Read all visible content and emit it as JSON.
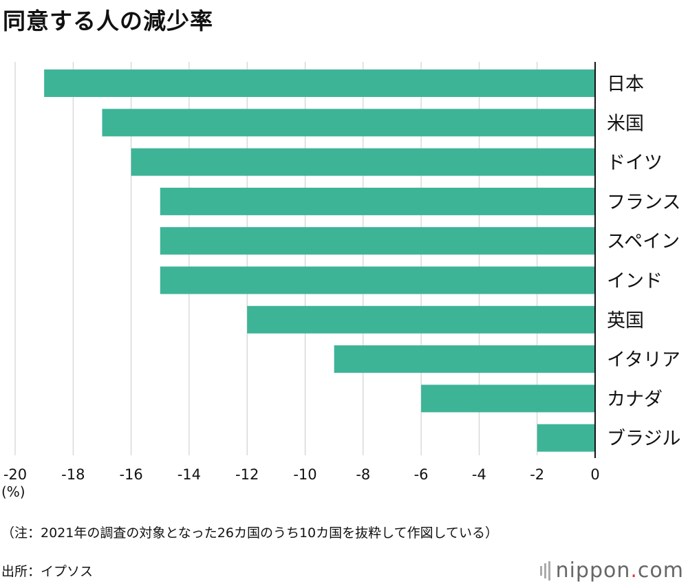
{
  "title": "同意する人の減少率",
  "chart_data": {
    "type": "bar",
    "orientation": "horizontal",
    "categories": [
      "日本",
      "米国",
      "ドイツ",
      "フランス",
      "スペイン",
      "インド",
      "英国",
      "イタリア",
      "カナダ",
      "ブラジル"
    ],
    "values": [
      -19,
      -17,
      -16,
      -15,
      -15,
      -15,
      -12,
      -9,
      -6,
      -2
    ],
    "xlim": [
      -20,
      0
    ],
    "xticks": [
      -20,
      -18,
      -16,
      -14,
      -12,
      -10,
      -8,
      -6,
      -4,
      -2,
      0
    ],
    "xlabel": "(%)",
    "grid": true,
    "bar_color": "#3eb497"
  },
  "note": "（注：2021年の調査の対象となった26カ国のうち10カ国を抜粋して作図している）",
  "source": "出所：イプソス",
  "logo": {
    "main": "nippon",
    "dot": ".",
    "tld": "com"
  }
}
